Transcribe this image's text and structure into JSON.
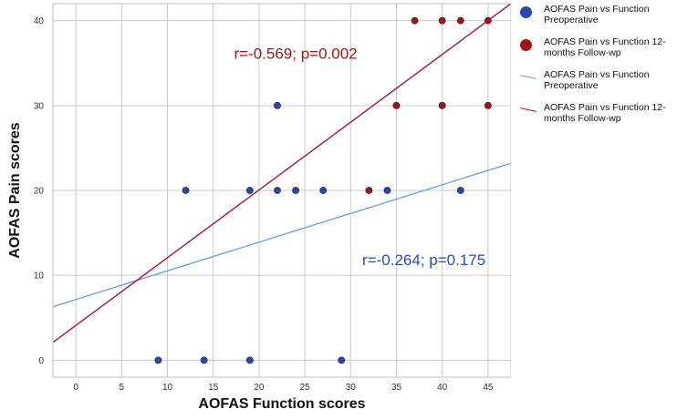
{
  "chart_data": {
    "type": "scatter",
    "xlabel": "AOFAS Function scores",
    "ylabel": "AOFAS Pain scores",
    "xlim": [
      -2.5,
      47.5
    ],
    "ylim": [
      -2,
      42
    ],
    "x_ticks": [
      "0",
      "5",
      "10",
      "15",
      "20",
      "25",
      "30",
      "35",
      "40",
      "45"
    ],
    "y_ticks": [
      "0",
      "10",
      "20",
      "30",
      "40"
    ],
    "grid": true,
    "legend_position": "right",
    "series": [
      {
        "name": "AOFAS Pain vs Function Preoperative",
        "color": "#2a46a8",
        "x": [
          9,
          14,
          19,
          29,
          12,
          19,
          22,
          24,
          27,
          34,
          42,
          22
        ],
        "y": [
          0,
          0,
          0,
          0,
          20,
          20,
          20,
          20,
          20,
          20,
          20,
          30
        ]
      },
      {
        "name": "AOFAS Pain vs Function 12-months Follow-wp",
        "color": "#9c1616",
        "x": [
          32,
          35,
          40,
          45,
          37,
          40,
          42,
          45
        ],
        "y": [
          20,
          30,
          30,
          30,
          40,
          40,
          40,
          40
        ]
      }
    ],
    "fit_lines": [
      {
        "name": "AOFAS Pain vs Function Preoperative",
        "color": "#6fa3d3",
        "x": [
          -2.5,
          47.5
        ],
        "y": [
          6.3,
          23.2
        ]
      },
      {
        "name": "AOFAS Pain vs Function 12-months Follow-wp",
        "color": "#9c1a3a",
        "x": [
          -2.5,
          47.5
        ],
        "y": [
          2.1,
          42.0
        ]
      }
    ],
    "annotations": [
      {
        "text": "r=-0.569; p=0.002",
        "x": 24,
        "y": 35.5,
        "color": "#9c1616"
      },
      {
        "text": "r=-0.264; p=0.175",
        "x": 38,
        "y": 11.2,
        "color": "#2a4eaa"
      }
    ]
  }
}
